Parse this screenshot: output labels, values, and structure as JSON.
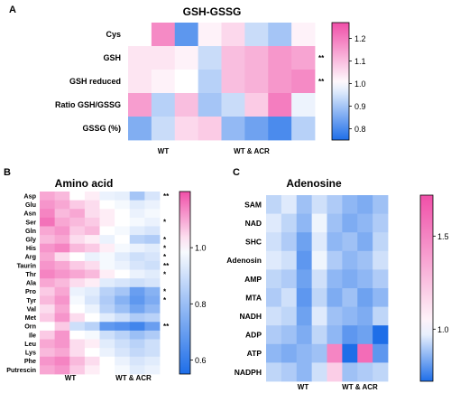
{
  "chart_data": [
    {
      "type": "heatmap",
      "panel": "A",
      "title": "GSH-GSSG",
      "rows": [
        "Cys",
        "GSH",
        "GSH reduced",
        "Ratio GSH/GSSG",
        "GSSG (%)"
      ],
      "groups": [
        "WT",
        "WT & ACR"
      ],
      "columns_per_group": 4,
      "values": [
        [
          1.0,
          1.18,
          0.82,
          1.02,
          1.06,
          0.94,
          0.9,
          1.02
        ],
        [
          1.04,
          1.04,
          1.02,
          0.94,
          1.1,
          1.12,
          1.16,
          1.14
        ],
        [
          1.04,
          1.02,
          1.0,
          0.92,
          1.1,
          1.12,
          1.16,
          1.18
        ],
        [
          1.15,
          0.92,
          1.1,
          0.9,
          0.94,
          1.08,
          1.2,
          0.98
        ],
        [
          0.86,
          0.94,
          1.06,
          1.08,
          0.88,
          0.84,
          0.8,
          0.92
        ]
      ],
      "significance": [
        "",
        "**",
        "**",
        "",
        ""
      ],
      "colorbar": {
        "min": 0.75,
        "max": 1.27,
        "ticks": [
          1.2,
          1.1,
          1.0,
          0.9,
          0.8
        ],
        "low_color": "#1e6ee8",
        "mid_color": "#ffffff",
        "high_color": "#f04fa8"
      }
    },
    {
      "type": "heatmap",
      "panel": "B",
      "title": "Amino acid",
      "rows": [
        "Asp",
        "Glu",
        "Asn",
        "Ser",
        "Gln",
        "Gly",
        "His",
        "Arg",
        "Taurin",
        "Thr",
        "Ala",
        "Pro",
        "Tyr",
        "Val",
        "Met",
        "Orn",
        "Ile",
        "Leu",
        "Lys",
        "Phe",
        "Putrescin"
      ],
      "groups": [
        "WT",
        "WT & ACR"
      ],
      "columns_per_group": 4,
      "values": [
        [
          1.1,
          1.08,
          1.0,
          1.02,
          0.96,
          0.95,
          0.82,
          0.92
        ],
        [
          1.12,
          1.1,
          1.06,
          1.04,
          1.0,
          0.98,
          0.94,
          0.96
        ],
        [
          1.14,
          1.08,
          1.1,
          1.04,
          1.02,
          1.0,
          0.96,
          0.98
        ],
        [
          1.16,
          1.1,
          1.08,
          1.06,
          1.02,
          1.0,
          0.98,
          0.96
        ],
        [
          1.1,
          1.12,
          1.06,
          1.08,
          1.0,
          0.98,
          0.94,
          0.92
        ],
        [
          1.08,
          1.1,
          1.04,
          1.02,
          0.96,
          1.0,
          0.86,
          0.84
        ],
        [
          1.12,
          1.14,
          1.08,
          1.06,
          1.02,
          0.98,
          0.96,
          0.94
        ],
        [
          1.1,
          1.04,
          1.0,
          0.96,
          0.98,
          0.94,
          0.9,
          0.92
        ],
        [
          1.12,
          1.1,
          1.06,
          1.04,
          0.98,
          0.96,
          0.92,
          0.9
        ],
        [
          1.14,
          1.12,
          1.1,
          1.08,
          1.02,
          1.0,
          0.96,
          0.94
        ],
        [
          1.1,
          1.08,
          1.04,
          1.02,
          0.94,
          0.92,
          0.9,
          0.92
        ],
        [
          1.06,
          1.1,
          0.96,
          0.94,
          0.86,
          0.82,
          0.7,
          0.76
        ],
        [
          1.08,
          1.12,
          0.98,
          0.92,
          0.84,
          0.76,
          0.68,
          0.74
        ],
        [
          1.04,
          1.1,
          1.0,
          0.96,
          0.86,
          0.8,
          0.72,
          0.78
        ],
        [
          1.06,
          1.12,
          1.04,
          1.0,
          0.94,
          0.9,
          0.84,
          0.86
        ],
        [
          1.0,
          1.06,
          0.9,
          0.86,
          0.68,
          0.66,
          0.62,
          0.7
        ],
        [
          1.06,
          1.12,
          1.0,
          0.98,
          0.9,
          0.86,
          0.8,
          0.84
        ],
        [
          1.1,
          1.12,
          1.04,
          1.02,
          0.94,
          0.9,
          0.86,
          0.9
        ],
        [
          1.08,
          1.1,
          1.04,
          1.0,
          0.96,
          0.92,
          0.88,
          0.9
        ],
        [
          1.12,
          1.14,
          1.08,
          1.04,
          1.0,
          0.96,
          0.92,
          0.94
        ],
        [
          1.1,
          1.12,
          1.06,
          1.02,
          1.0,
          0.98,
          0.94,
          0.96
        ]
      ],
      "significance": [
        "**",
        "",
        "",
        "*",
        "",
        "*",
        "*",
        "*",
        "**",
        "*",
        "",
        "*",
        "*",
        "",
        "",
        "**",
        "",
        "",
        "",
        "",
        ""
      ],
      "colorbar": {
        "min": 0.55,
        "max": 1.2,
        "ticks": [
          1.0,
          0.8,
          0.6
        ],
        "low_color": "#1e6ee8",
        "mid_color": "#ffffff",
        "high_color": "#f04fa8"
      }
    },
    {
      "type": "heatmap",
      "panel": "C",
      "title": "Adenosine",
      "rows": [
        "SAM",
        "NAD",
        "SHC",
        "Adenosin",
        "AMP",
        "MTA",
        "NADH",
        "ADP",
        "ATP",
        "NADPH"
      ],
      "groups": [
        "WT",
        "WT & ACR"
      ],
      "columns_per_group": 4,
      "values": [
        [
          0.92,
          0.96,
          0.88,
          0.94,
          0.9,
          0.86,
          0.84,
          0.88
        ],
        [
          0.96,
          0.92,
          0.86,
          0.98,
          0.88,
          0.84,
          0.86,
          0.9
        ],
        [
          0.94,
          0.9,
          0.82,
          0.96,
          0.86,
          0.88,
          0.84,
          0.92
        ],
        [
          0.96,
          0.94,
          0.8,
          0.98,
          0.9,
          0.86,
          0.88,
          0.94
        ],
        [
          0.92,
          0.9,
          0.82,
          0.94,
          0.86,
          0.84,
          0.86,
          0.9
        ],
        [
          0.9,
          0.94,
          0.8,
          0.92,
          0.84,
          0.88,
          0.82,
          0.86
        ],
        [
          0.94,
          0.92,
          0.82,
          0.96,
          0.88,
          0.86,
          0.84,
          0.92
        ],
        [
          0.9,
          0.88,
          0.84,
          0.92,
          0.86,
          0.8,
          0.82,
          0.72
        ],
        [
          0.86,
          0.84,
          0.86,
          0.88,
          1.5,
          0.7,
          1.6,
          0.8
        ],
        [
          0.92,
          0.9,
          0.86,
          0.94,
          1.2,
          0.88,
          0.9,
          0.92
        ]
      ],
      "significance": [
        "",
        "",
        "",
        "",
        "",
        "",
        "",
        "",
        "",
        ""
      ],
      "colorbar": {
        "min": 0.72,
        "max": 1.72,
        "ticks": [
          1.5,
          1.0
        ],
        "low_color": "#1e6ee8",
        "mid_color": "#ffffff",
        "high_color": "#f04fa8"
      }
    }
  ]
}
